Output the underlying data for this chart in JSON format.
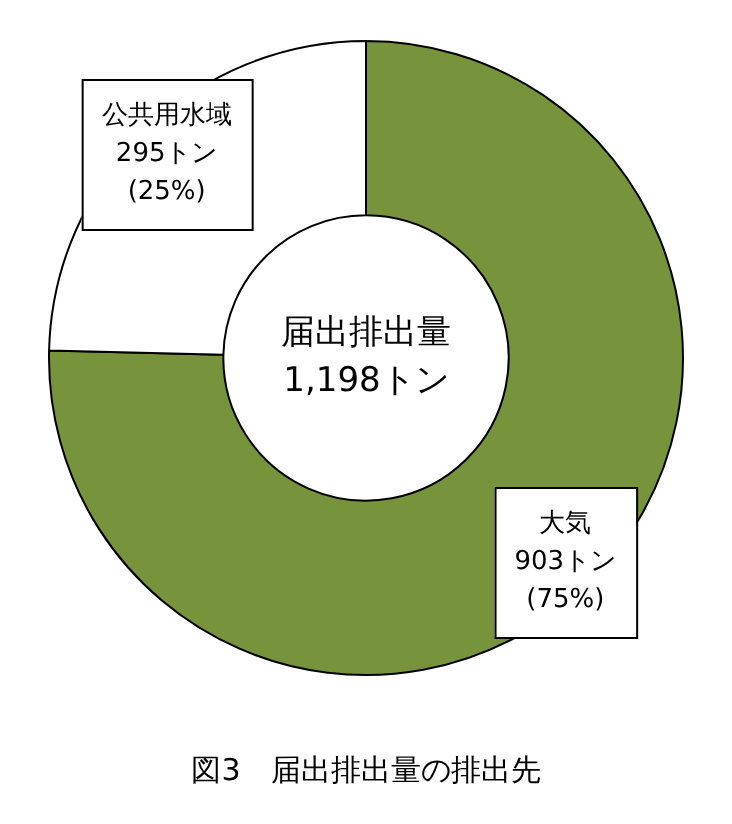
{
  "chart_data": {
    "type": "donut",
    "title": "図3　届出排出量の排出先",
    "categories": [
      "大気",
      "公共用水域"
    ],
    "values": [
      903,
      295
    ],
    "colors": [
      "#77933c",
      "#ffffff"
    ],
    "value_labels": [
      "903トン\n(75%)",
      "295トン\n(25%)"
    ],
    "annotations": [
      "届出排出量\n1,198トン"
    ],
    "legend": false
  }
}
